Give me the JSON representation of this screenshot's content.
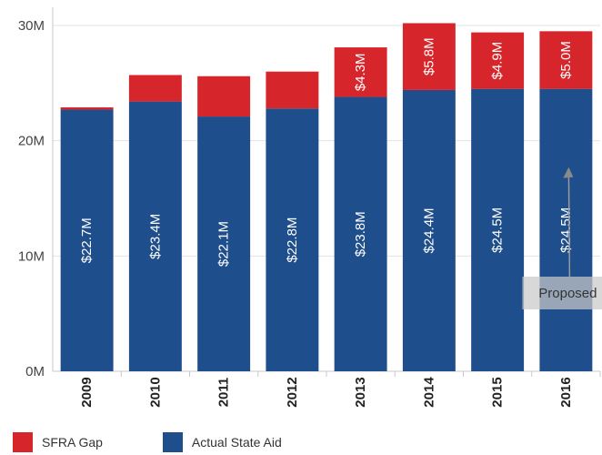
{
  "chart_data": {
    "type": "bar",
    "stacked": true,
    "categories": [
      "2009",
      "2010",
      "2011",
      "2012",
      "2013",
      "2014",
      "2015",
      "2016"
    ],
    "series": [
      {
        "name": "Actual State Aid",
        "color": "#1f4e8c",
        "values": [
          22.7,
          23.4,
          22.1,
          22.8,
          23.8,
          24.4,
          24.5,
          24.5
        ],
        "labels": [
          "$22.7M",
          "$23.4M",
          "$22.1M",
          "$22.8M",
          "$23.8M",
          "$24.4M",
          "$24.5M",
          "$24.5M"
        ]
      },
      {
        "name": "SFRA Gap",
        "color": "#d7262b",
        "values": [
          0.2,
          2.3,
          3.5,
          3.2,
          4.3,
          5.8,
          4.9,
          5.0
        ],
        "labels": [
          "",
          "",
          "",
          "",
          "$4.3M",
          "$5.8M",
          "$4.9M",
          "$5.0M"
        ]
      }
    ],
    "ylim": [
      0,
      30
    ],
    "yticks": [
      {
        "value": 0,
        "label": "0M"
      },
      {
        "value": 10,
        "label": "10M"
      },
      {
        "value": 20,
        "label": "20M"
      },
      {
        "value": 30,
        "label": "30M"
      }
    ],
    "title": "",
    "xlabel": "",
    "ylabel": "",
    "grid": "horizontal",
    "legend_position": "bottom-left",
    "annotation": {
      "text": "Proposed",
      "category": "2016",
      "value": 17
    }
  },
  "legend": {
    "items": [
      {
        "label": "SFRA Gap",
        "color": "#d7262b"
      },
      {
        "label": "Actual State Aid",
        "color": "#1f4e8c"
      }
    ]
  }
}
